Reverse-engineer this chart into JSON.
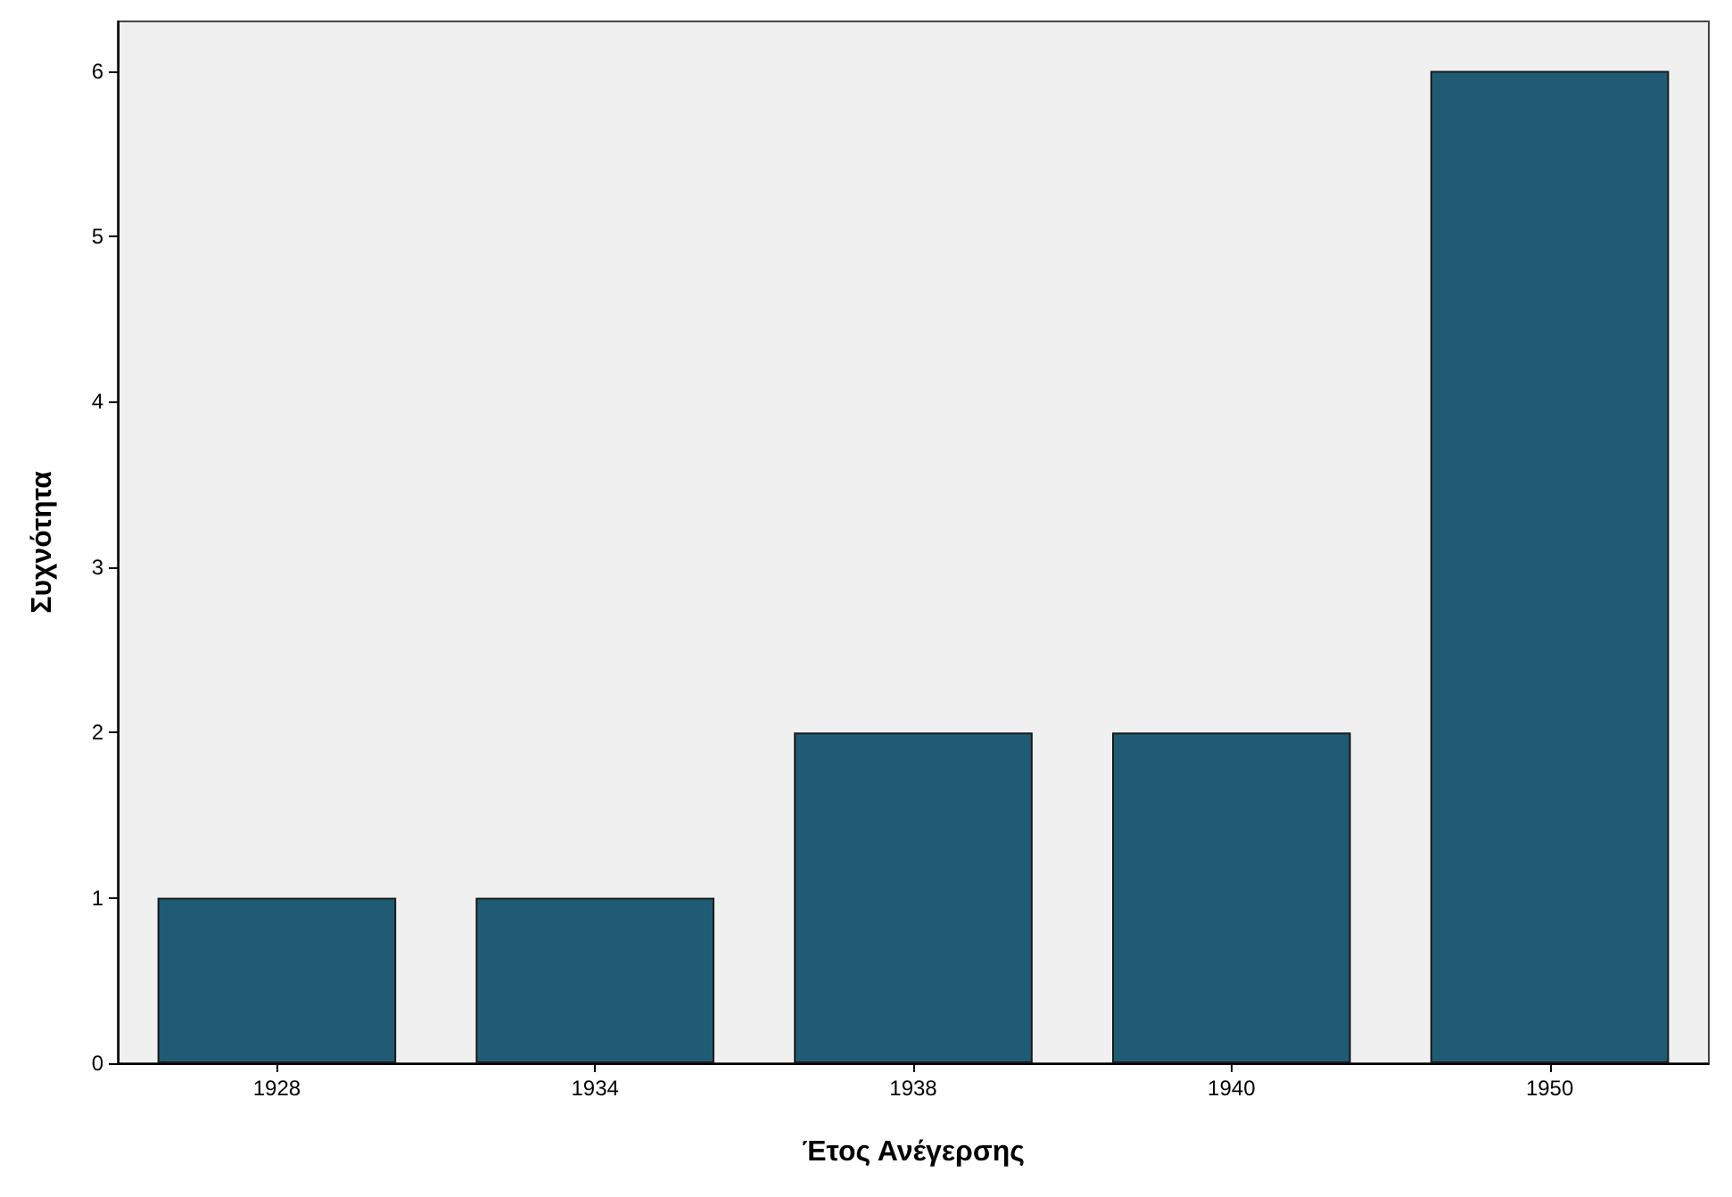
{
  "chart_data": {
    "type": "bar",
    "xlabel": "Έτος Ανέγερσης",
    "ylabel": "Συχνότητα",
    "categories": [
      "1928",
      "1934",
      "1938",
      "1940",
      "1950"
    ],
    "values": [
      1,
      1,
      2,
      2,
      6
    ],
    "color": "#1f5c73",
    "ylim": [
      0,
      6.3
    ],
    "yticks": [
      0,
      1,
      2,
      3,
      4,
      5,
      6
    ],
    "grid": false
  }
}
